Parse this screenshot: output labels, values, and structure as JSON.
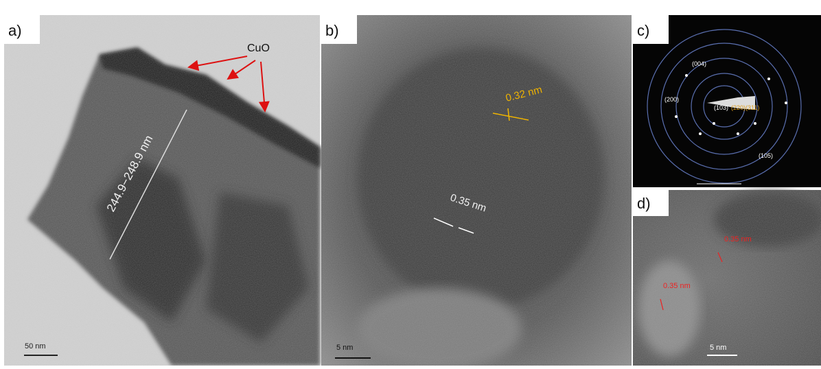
{
  "panels": {
    "a": {
      "label": "a)",
      "phase": "CuO",
      "thickness": "244.9−248.9 nm",
      "scale_bar": "50 nm"
    },
    "b": {
      "label": "b)",
      "spacing_1": "0.32 nm",
      "spacing_2": "0.35 nm",
      "scale_bar": "5 nm"
    },
    "c": {
      "label": "c)",
      "rings": [
        "(004)",
        "(200)",
        "(103)",
        "(220)(311)",
        "(105)"
      ]
    },
    "d": {
      "label": "d)",
      "spacing_1": "0.35 nm",
      "spacing_2": "0.35 nm",
      "scale_bar": "5 nm"
    }
  }
}
